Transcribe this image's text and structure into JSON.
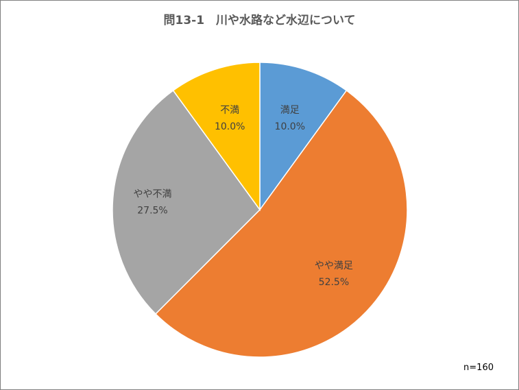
{
  "chart_data": {
    "type": "pie",
    "title": "問13-1　川や水路など水辺について",
    "categories": [
      "満足",
      "やや満足",
      "やや不満",
      "不満"
    ],
    "values": [
      10.0,
      52.5,
      27.5,
      10.0
    ],
    "value_labels": [
      "10.0%",
      "52.5%",
      "27.5%",
      "10.0%"
    ],
    "colors": [
      "#5b9bd5",
      "#ed7d31",
      "#a5a5a5",
      "#ffc000"
    ],
    "start_angle": "12 o'clock, clockwise",
    "legend": "none",
    "note": "n=160"
  }
}
